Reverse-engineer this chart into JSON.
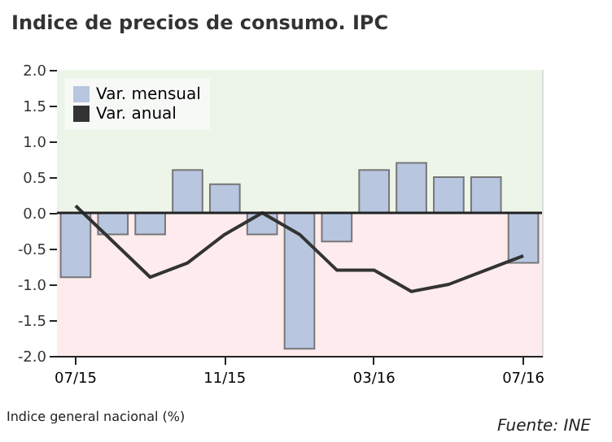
{
  "chart_data": {
    "type": "bar",
    "title": "Indice de precios de consumo. IPC",
    "categories": [
      "07/15",
      null,
      null,
      null,
      "11/15",
      null,
      null,
      null,
      "03/16",
      null,
      null,
      null,
      "07/16"
    ],
    "series": [
      {
        "name": "Var. mensual",
        "color": "#b8c6e0",
        "values": [
          -0.9,
          -0.3,
          -0.3,
          0.6,
          0.4,
          -0.3,
          -1.9,
          -0.4,
          0.6,
          0.7,
          0.5,
          0.5,
          -0.7
        ]
      },
      {
        "name": "Var. anual",
        "type": "line",
        "color": "#333333",
        "values": [
          0.1,
          -0.4,
          -0.9,
          -0.7,
          -0.3,
          0.0,
          -0.3,
          -0.8,
          -0.8,
          -1.1,
          -1.0,
          -0.8,
          -0.6
        ]
      }
    ],
    "ylim": [
      -2.0,
      2.0
    ],
    "yticks": [
      {
        "value": -2,
        "label": "-2.0"
      },
      {
        "value": -1.5,
        "label": "-1.5"
      },
      {
        "value": -1,
        "label": "-1.0"
      },
      {
        "value": -0.5,
        "label": "-0.5"
      },
      {
        "value": 0,
        "label": "0.0"
      },
      {
        "value": 0.5,
        "label": "0.5"
      },
      {
        "value": 1,
        "label": "1.0"
      },
      {
        "value": 1.5,
        "label": "1.5"
      },
      {
        "value": 2,
        "label": "2.0"
      }
    ],
    "bands": [
      {
        "axis": "y",
        "from": 0,
        "to": 2,
        "color": "#edf5e8"
      },
      {
        "axis": "y",
        "from": -2,
        "to": 0,
        "color": "#fdebee"
      }
    ],
    "ref_lines": [
      {
        "axis": "y",
        "value": 0,
        "color": "#222222"
      }
    ],
    "legend": "top left",
    "annotations": [
      "Indice general nacional (%)",
      "Fuente: INE"
    ]
  }
}
